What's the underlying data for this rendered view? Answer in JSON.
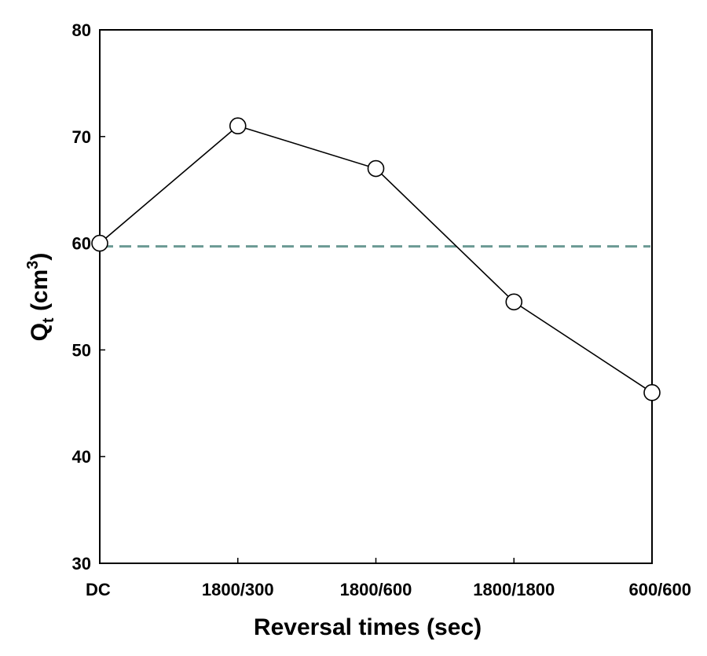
{
  "chart_data": {
    "type": "line",
    "title": "",
    "xlabel": "Reversal times (sec)",
    "ylabel": {
      "base": "Q",
      "subscript": "t",
      "unit_open": " (cm",
      "superscript": "3",
      "unit_close": ")"
    },
    "categories": [
      "DC",
      "1800/300",
      "1800/600",
      "1800/1800",
      "600/600"
    ],
    "series": [
      {
        "name": "Qt",
        "values": [
          60,
          71,
          67,
          54.5,
          46
        ],
        "marker": "open-circle",
        "color": "#000000"
      }
    ],
    "reference_line": {
      "y": 59.7,
      "style": "dashed",
      "color": "#6b9a94"
    },
    "ylim": [
      30,
      80
    ],
    "yticks": [
      "30",
      "40",
      "50",
      "60",
      "70",
      "80"
    ],
    "grid": false,
    "legend": "none"
  }
}
